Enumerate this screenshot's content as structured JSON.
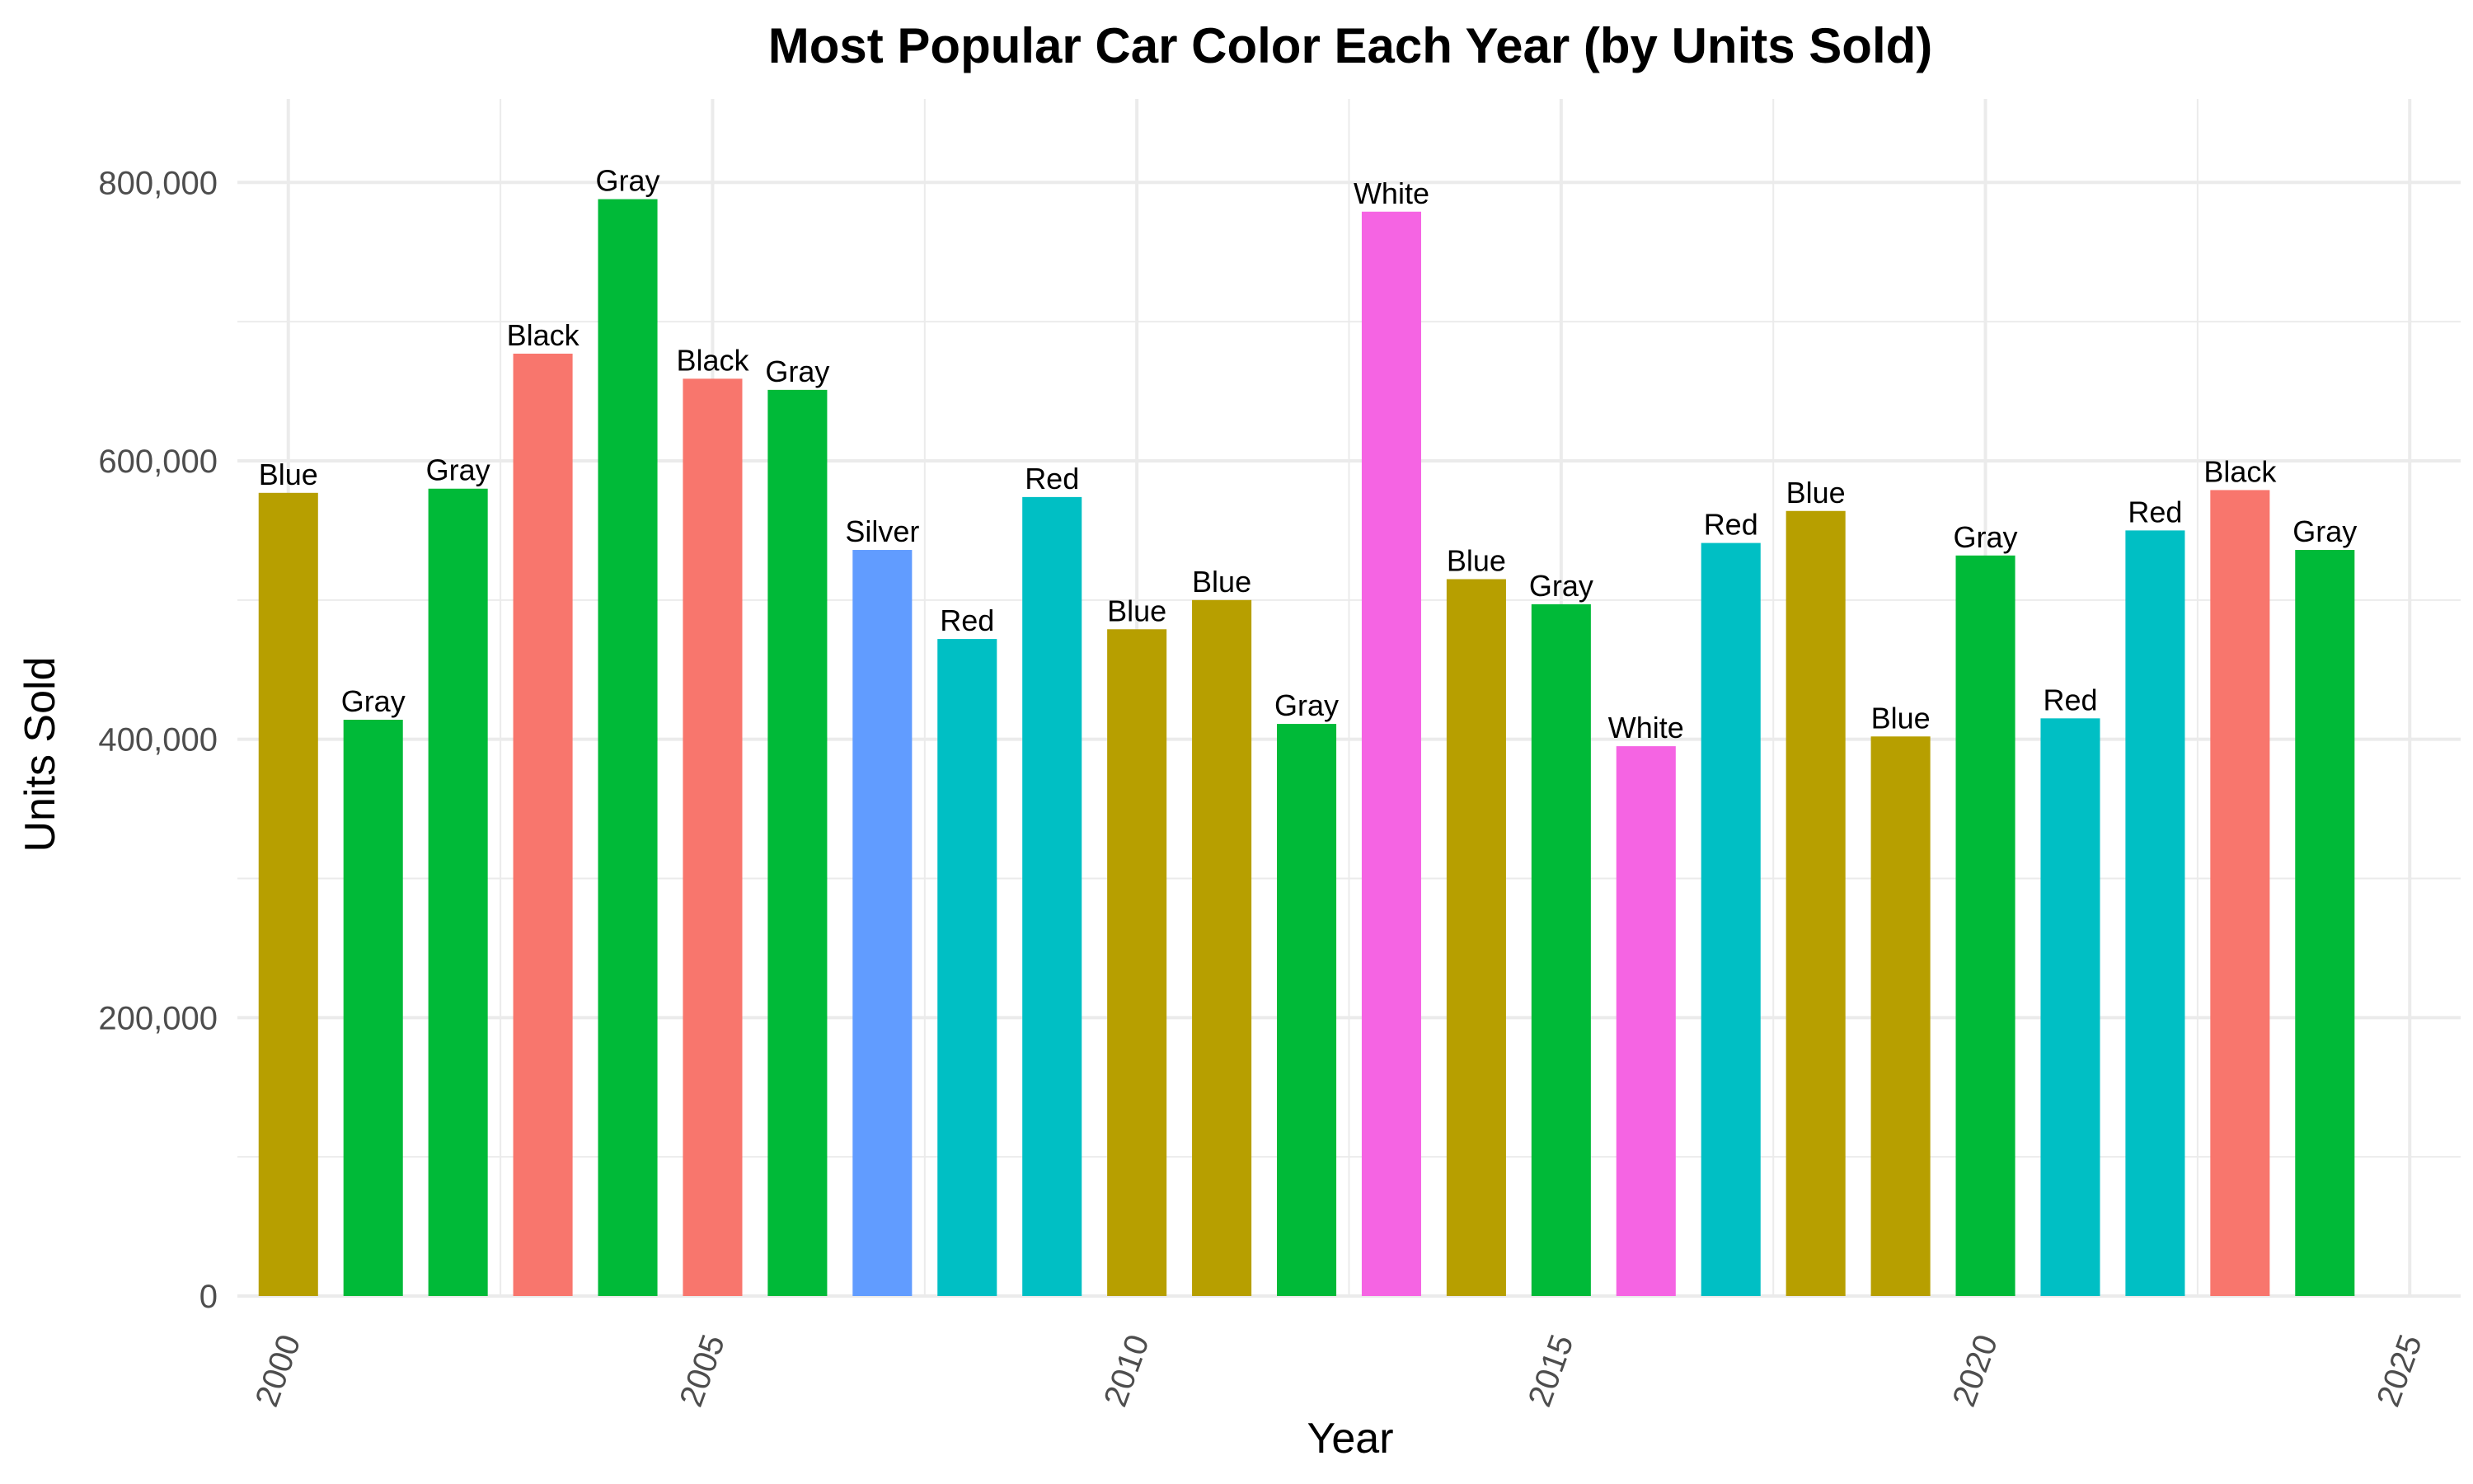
{
  "chart_data": {
    "type": "bar",
    "title": "Most Popular Car Color Each Year (by Units Sold)",
    "xlabel": "Year",
    "ylabel": "Units Sold",
    "xlim": [
      1999.4,
      2025.6
    ],
    "ylim": [
      0,
      860000
    ],
    "x_ticks": [
      2000,
      2005,
      2010,
      2015,
      2020,
      2025
    ],
    "y_ticks": [
      0,
      200000,
      400000,
      600000,
      800000
    ],
    "y_tick_labels": [
      "0",
      "200,000",
      "400,000",
      "600,000",
      "800,000"
    ],
    "grid": true,
    "x_tick_label_rotation": "angled",
    "colors": {
      "Blue": "#B79F00",
      "Gray": "#00BA38",
      "Black": "#F8766D",
      "Silver": "#619CFF",
      "Red": "#00BFC4",
      "White": "#F564E3"
    },
    "points": [
      {
        "year": 2000,
        "color": "Blue",
        "value": 577000
      },
      {
        "year": 2001,
        "color": "Gray",
        "value": 414000
      },
      {
        "year": 2002,
        "color": "Gray",
        "value": 580000
      },
      {
        "year": 2003,
        "color": "Black",
        "value": 677000
      },
      {
        "year": 2004,
        "color": "Gray",
        "value": 788000
      },
      {
        "year": 2005,
        "color": "Black",
        "value": 659000
      },
      {
        "year": 2006,
        "color": "Gray",
        "value": 651000
      },
      {
        "year": 2007,
        "color": "Silver",
        "value": 536000
      },
      {
        "year": 2008,
        "color": "Red",
        "value": 472000
      },
      {
        "year": 2009,
        "color": "Red",
        "value": 574000
      },
      {
        "year": 2010,
        "color": "Blue",
        "value": 479000
      },
      {
        "year": 2011,
        "color": "Blue",
        "value": 500000
      },
      {
        "year": 2012,
        "color": "Gray",
        "value": 411000
      },
      {
        "year": 2013,
        "color": "White",
        "value": 779000
      },
      {
        "year": 2014,
        "color": "Blue",
        "value": 515000
      },
      {
        "year": 2015,
        "color": "Gray",
        "value": 497000
      },
      {
        "year": 2016,
        "color": "White",
        "value": 395000
      },
      {
        "year": 2017,
        "color": "Red",
        "value": 541000
      },
      {
        "year": 2018,
        "color": "Blue",
        "value": 564000
      },
      {
        "year": 2019,
        "color": "Blue",
        "value": 402000
      },
      {
        "year": 2020,
        "color": "Gray",
        "value": 532000
      },
      {
        "year": 2021,
        "color": "Red",
        "value": 415000
      },
      {
        "year": 2022,
        "color": "Red",
        "value": 550000
      },
      {
        "year": 2023,
        "color": "Black",
        "value": 579000
      },
      {
        "year": 2024,
        "color": "Gray",
        "value": 536000
      }
    ]
  }
}
